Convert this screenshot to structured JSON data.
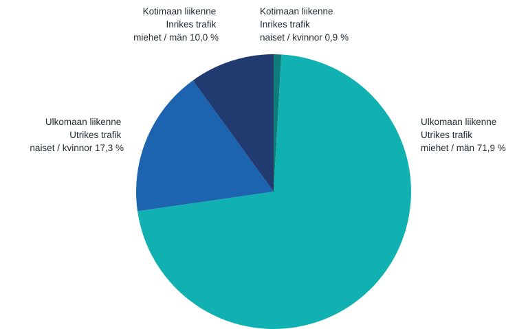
{
  "chart_data": {
    "type": "pie",
    "start_angle_deg": 0,
    "direction": "clockwise",
    "slices": [
      {
        "lines": [
          "Kotimaan liikenne",
          "Inrikes trafik",
          "naiset / kvinnor 0,9 %"
        ],
        "value": 0.9,
        "color": "#0f7b7a"
      },
      {
        "lines": [
          "Ulkomaan liikenne",
          "Utrikes trafik",
          "miehet / män 71,9 %"
        ],
        "value": 71.9,
        "color": "#11b0b1"
      },
      {
        "lines": [
          "Ulkomaan liikenne",
          "Utrikes trafik",
          "naiset / kvinnor  17,3 %"
        ],
        "value": 17.3,
        "color": "#1c64b0"
      },
      {
        "lines": [
          "Kotimaan liikenne",
          "Inrikes trafik",
          "miehet / män 10,0 %"
        ],
        "value": 10.0,
        "color": "#213a70"
      }
    ]
  }
}
